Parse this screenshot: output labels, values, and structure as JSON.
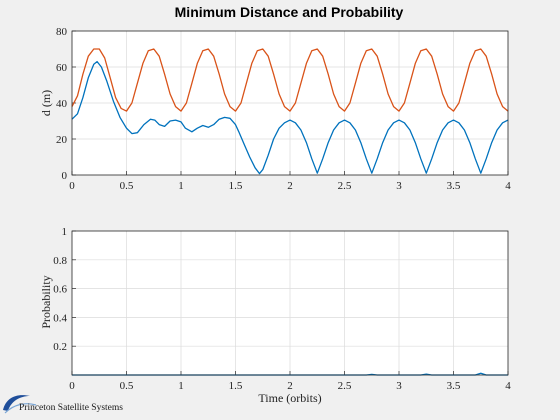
{
  "logo": {
    "text": "Princeton Satellite Systems",
    "icon": "psslogo-swoosh-icon"
  },
  "colors": {
    "series1": "#0072BD",
    "series2": "#D95319",
    "grid": "#dcdcdc",
    "axes_bg": "#ffffff",
    "figure_bg": "#f0f0f0"
  },
  "chart_data": [
    {
      "type": "line",
      "title": "Minimum Distance and Probability",
      "xlabel": "",
      "ylabel": "d (m)",
      "xlim": [
        0,
        4
      ],
      "ylim": [
        0,
        80
      ],
      "xticks": [
        "0",
        "0.5",
        "1",
        "1.5",
        "2",
        "2.5",
        "3",
        "3.5",
        "4"
      ],
      "yticks": [
        "0",
        "20",
        "40",
        "60",
        "80"
      ],
      "grid": true,
      "series": [
        {
          "color": "#0072BD",
          "x": [
            0,
            0.05,
            0.1,
            0.15,
            0.2,
            0.23,
            0.27,
            0.32,
            0.38,
            0.44,
            0.5,
            0.55,
            0.6,
            0.66,
            0.72,
            0.76,
            0.8,
            0.85,
            0.9,
            0.95,
            1.0,
            1.04,
            1.1,
            1.15,
            1.2,
            1.25,
            1.3,
            1.35,
            1.4,
            1.45,
            1.5,
            1.53,
            1.58,
            1.63,
            1.68,
            1.72,
            1.75,
            1.8,
            1.85,
            1.9,
            1.95,
            2.0,
            2.05,
            2.1,
            2.15,
            2.2,
            2.25,
            2.3,
            2.35,
            2.4,
            2.45,
            2.5,
            2.55,
            2.6,
            2.65,
            2.7,
            2.75,
            2.8,
            2.85,
            2.9,
            2.95,
            3.0,
            3.05,
            3.1,
            3.15,
            3.2,
            3.25,
            3.3,
            3.35,
            3.4,
            3.45,
            3.5,
            3.55,
            3.6,
            3.65,
            3.7,
            3.75,
            3.8,
            3.85,
            3.9,
            3.95,
            4.0
          ],
          "y": [
            31,
            34,
            43,
            54,
            61.5,
            63,
            60,
            52,
            41,
            32,
            26,
            23,
            23.5,
            28,
            31,
            30.5,
            28,
            27,
            30,
            30.5,
            29.5,
            26,
            24,
            26,
            27.5,
            26.5,
            28,
            31,
            32,
            31.5,
            28,
            24,
            17,
            10,
            4,
            0.8,
            3,
            11,
            20,
            26,
            29,
            30.5,
            29,
            25,
            18,
            9,
            1,
            9,
            18,
            25,
            29,
            30.5,
            29,
            25,
            18,
            9,
            1,
            9,
            18,
            25,
            29,
            30.5,
            29,
            25,
            18,
            9,
            1,
            9,
            18,
            25,
            29,
            30.5,
            29,
            25,
            18,
            9,
            1,
            9,
            18,
            25,
            29,
            30.5
          ]
        },
        {
          "color": "#D95319",
          "x": [
            0,
            0.05,
            0.1,
            0.15,
            0.2,
            0.25,
            0.3,
            0.35,
            0.4,
            0.45,
            0.5,
            0.55,
            0.6,
            0.65,
            0.7,
            0.75,
            0.8,
            0.85,
            0.9,
            0.95,
            1.0,
            1.05,
            1.1,
            1.15,
            1.2,
            1.25,
            1.3,
            1.35,
            1.4,
            1.45,
            1.5,
            1.55,
            1.6,
            1.65,
            1.7,
            1.75,
            1.8,
            1.85,
            1.9,
            1.95,
            2.0,
            2.05,
            2.1,
            2.15,
            2.2,
            2.25,
            2.3,
            2.35,
            2.4,
            2.45,
            2.5,
            2.55,
            2.6,
            2.65,
            2.7,
            2.75,
            2.8,
            2.85,
            2.9,
            2.95,
            3.0,
            3.05,
            3.1,
            3.15,
            3.2,
            3.25,
            3.3,
            3.35,
            3.4,
            3.45,
            3.5,
            3.55,
            3.6,
            3.65,
            3.7,
            3.75,
            3.8,
            3.85,
            3.9,
            3.95,
            4.0
          ],
          "y": [
            38,
            44,
            56,
            66,
            70,
            70,
            65,
            54,
            43,
            37,
            35.5,
            40,
            51,
            62,
            69,
            70,
            66,
            56,
            45,
            38,
            35.5,
            40,
            51,
            62,
            69,
            70,
            66,
            56,
            45,
            38,
            35.5,
            40,
            51,
            62,
            69,
            70,
            66,
            56,
            45,
            38,
            35.5,
            40,
            51,
            62,
            69,
            70,
            66,
            56,
            45,
            38,
            35.5,
            40,
            51,
            62,
            69,
            70,
            66,
            56,
            45,
            38,
            35.5,
            40,
            51,
            62,
            69,
            70,
            66,
            56,
            45,
            38,
            35.5,
            40,
            51,
            62,
            69,
            70,
            66,
            56,
            45,
            38,
            35.5
          ]
        }
      ]
    },
    {
      "type": "line",
      "title": "",
      "xlabel": "Time (orbits)",
      "ylabel": "Probability",
      "xlim": [
        0,
        4
      ],
      "ylim": [
        0,
        1
      ],
      "xticks": [
        "0",
        "0.5",
        "1",
        "1.5",
        "2",
        "2.5",
        "3",
        "3.5",
        "4"
      ],
      "yticks": [
        "0.2",
        "0.4",
        "0.6",
        "0.8",
        "1"
      ],
      "grid": true,
      "series": [
        {
          "color": "#0072BD",
          "x": [
            0,
            0.5,
            1.0,
            1.5,
            2.0,
            2.5,
            2.7,
            2.75,
            2.8,
            3.0,
            3.2,
            3.25,
            3.3,
            3.5,
            3.7,
            3.75,
            3.8,
            4.0
          ],
          "y": [
            0,
            0,
            0,
            0,
            0,
            0,
            0,
            0.004,
            0,
            0,
            0,
            0.006,
            0,
            0,
            0,
            0.012,
            0,
            0
          ]
        }
      ]
    }
  ]
}
